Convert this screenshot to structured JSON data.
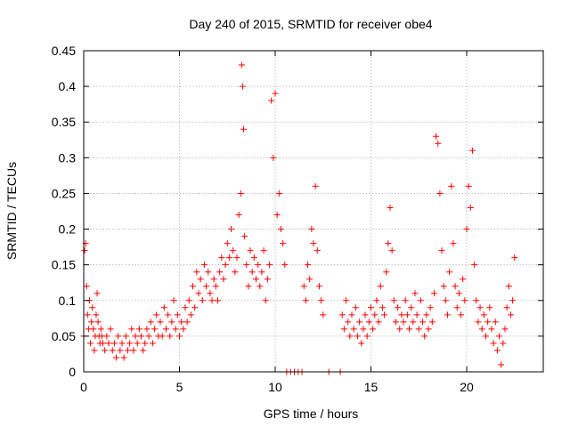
{
  "chart_data": {
    "type": "scatter",
    "title": "Day 240 of 2015, SRMTID for receiver obe4",
    "xlabel": "GPS time / hours",
    "ylabel": "SRMTID / TECUs",
    "xlim": [
      0,
      24
    ],
    "ylim": [
      0,
      0.45
    ],
    "xticks": [
      0,
      5,
      10,
      15,
      20
    ],
    "yticks": [
      0,
      0.05,
      0.1,
      0.15,
      0.2,
      0.25,
      0.3,
      0.35,
      0.4,
      0.45
    ],
    "xtick_labels": [
      "0",
      "5",
      "10",
      "15",
      "20"
    ],
    "ytick_labels": [
      "0",
      "0.05",
      "0.1",
      "0.15",
      "0.2",
      "0.25",
      "0.3",
      "0.35",
      "0.4",
      "0.45"
    ],
    "grid": true,
    "marker": "+",
    "color": "#ff0000",
    "series": [
      {
        "name": "SRMTID",
        "points": [
          [
            0.0,
            0.05
          ],
          [
            0.05,
            0.17
          ],
          [
            0.1,
            0.18
          ],
          [
            0.15,
            0.12
          ],
          [
            0.2,
            0.08
          ],
          [
            0.25,
            0.06
          ],
          [
            0.3,
            0.1
          ],
          [
            0.35,
            0.04
          ],
          [
            0.4,
            0.07
          ],
          [
            0.45,
            0.09
          ],
          [
            0.5,
            0.06
          ],
          [
            0.55,
            0.03
          ],
          [
            0.6,
            0.05
          ],
          [
            0.65,
            0.08
          ],
          [
            0.7,
            0.11
          ],
          [
            0.75,
            0.07
          ],
          [
            0.8,
            0.05
          ],
          [
            0.85,
            0.04
          ],
          [
            0.9,
            0.06
          ],
          [
            0.95,
            0.05
          ],
          [
            1.0,
            0.04
          ],
          [
            1.1,
            0.03
          ],
          [
            1.2,
            0.05
          ],
          [
            1.3,
            0.04
          ],
          [
            1.4,
            0.06
          ],
          [
            1.5,
            0.03
          ],
          [
            1.6,
            0.04
          ],
          [
            1.7,
            0.02
          ],
          [
            1.8,
            0.05
          ],
          [
            1.9,
            0.03
          ],
          [
            2.0,
            0.04
          ],
          [
            2.1,
            0.02
          ],
          [
            2.2,
            0.05
          ],
          [
            2.3,
            0.03
          ],
          [
            2.4,
            0.04
          ],
          [
            2.5,
            0.06
          ],
          [
            2.6,
            0.03
          ],
          [
            2.7,
            0.05
          ],
          [
            2.8,
            0.04
          ],
          [
            2.9,
            0.06
          ],
          [
            3.0,
            0.05
          ],
          [
            3.1,
            0.03
          ],
          [
            3.2,
            0.04
          ],
          [
            3.3,
            0.06
          ],
          [
            3.4,
            0.05
          ],
          [
            3.5,
            0.07
          ],
          [
            3.6,
            0.04
          ],
          [
            3.7,
            0.06
          ],
          [
            3.8,
            0.08
          ],
          [
            3.9,
            0.05
          ],
          [
            4.0,
            0.07
          ],
          [
            4.1,
            0.05
          ],
          [
            4.2,
            0.09
          ],
          [
            4.3,
            0.06
          ],
          [
            4.4,
            0.08
          ],
          [
            4.5,
            0.05
          ],
          [
            4.6,
            0.07
          ],
          [
            4.7,
            0.1
          ],
          [
            4.8,
            0.06
          ],
          [
            4.9,
            0.08
          ],
          [
            5.0,
            0.05
          ],
          [
            5.1,
            0.07
          ],
          [
            5.2,
            0.06
          ],
          [
            5.3,
            0.09
          ],
          [
            5.4,
            0.07
          ],
          [
            5.5,
            0.1
          ],
          [
            5.6,
            0.08
          ],
          [
            5.7,
            0.12
          ],
          [
            5.8,
            0.09
          ],
          [
            5.9,
            0.14
          ],
          [
            6.0,
            0.11
          ],
          [
            6.1,
            0.13
          ],
          [
            6.2,
            0.1
          ],
          [
            6.3,
            0.15
          ],
          [
            6.4,
            0.12
          ],
          [
            6.5,
            0.14
          ],
          [
            6.6,
            0.11
          ],
          [
            6.7,
            0.1
          ],
          [
            6.8,
            0.13
          ],
          [
            6.9,
            0.12
          ],
          [
            7.0,
            0.1
          ],
          [
            7.1,
            0.14
          ],
          [
            7.2,
            0.16
          ],
          [
            7.3,
            0.13
          ],
          [
            7.4,
            0.15
          ],
          [
            7.5,
            0.18
          ],
          [
            7.6,
            0.16
          ],
          [
            7.7,
            0.2
          ],
          [
            7.8,
            0.17
          ],
          [
            7.9,
            0.14
          ],
          [
            8.0,
            0.16
          ],
          [
            8.1,
            0.22
          ],
          [
            8.2,
            0.25
          ],
          [
            8.25,
            0.43
          ],
          [
            8.3,
            0.4
          ],
          [
            8.35,
            0.34
          ],
          [
            8.4,
            0.19
          ],
          [
            8.5,
            0.15
          ],
          [
            8.6,
            0.12
          ],
          [
            8.7,
            0.17
          ],
          [
            8.8,
            0.14
          ],
          [
            8.9,
            0.16
          ],
          [
            9.0,
            0.13
          ],
          [
            9.1,
            0.15
          ],
          [
            9.2,
            0.12
          ],
          [
            9.3,
            0.14
          ],
          [
            9.4,
            0.17
          ],
          [
            9.5,
            0.1
          ],
          [
            9.6,
            0.13
          ],
          [
            9.7,
            0.15
          ],
          [
            9.8,
            0.38
          ],
          [
            9.9,
            0.3
          ],
          [
            10.0,
            0.39
          ],
          [
            10.1,
            0.22
          ],
          [
            10.2,
            0.25
          ],
          [
            10.3,
            0.2
          ],
          [
            10.4,
            0.18
          ],
          [
            10.5,
            0.15
          ],
          [
            10.6,
            0.0
          ],
          [
            10.8,
            0.0
          ],
          [
            11.0,
            0.0
          ],
          [
            11.2,
            0.0
          ],
          [
            11.4,
            0.0
          ],
          [
            11.5,
            0.12
          ],
          [
            11.6,
            0.1
          ],
          [
            11.7,
            0.15
          ],
          [
            11.8,
            0.13
          ],
          [
            11.9,
            0.2
          ],
          [
            12.0,
            0.18
          ],
          [
            12.1,
            0.26
          ],
          [
            12.2,
            0.17
          ],
          [
            12.3,
            0.12
          ],
          [
            12.4,
            0.1
          ],
          [
            12.5,
            0.08
          ],
          [
            12.8,
            0.0
          ],
          [
            13.4,
            0.0
          ],
          [
            13.5,
            0.08
          ],
          [
            13.6,
            0.06
          ],
          [
            13.7,
            0.1
          ],
          [
            13.8,
            0.07
          ],
          [
            13.9,
            0.05
          ],
          [
            14.0,
            0.08
          ],
          [
            14.1,
            0.06
          ],
          [
            14.2,
            0.09
          ],
          [
            14.3,
            0.05
          ],
          [
            14.4,
            0.07
          ],
          [
            14.5,
            0.04
          ],
          [
            14.6,
            0.06
          ],
          [
            14.7,
            0.08
          ],
          [
            14.8,
            0.05
          ],
          [
            14.9,
            0.07
          ],
          [
            15.0,
            0.09
          ],
          [
            15.1,
            0.06
          ],
          [
            15.2,
            0.08
          ],
          [
            15.3,
            0.1
          ],
          [
            15.4,
            0.07
          ],
          [
            15.5,
            0.12
          ],
          [
            15.6,
            0.09
          ],
          [
            15.7,
            0.08
          ],
          [
            15.8,
            0.14
          ],
          [
            15.9,
            0.18
          ],
          [
            16.0,
            0.23
          ],
          [
            16.1,
            0.17
          ],
          [
            16.2,
            0.1
          ],
          [
            16.3,
            0.07
          ],
          [
            16.4,
            0.09
          ],
          [
            16.5,
            0.06
          ],
          [
            16.6,
            0.08
          ],
          [
            16.7,
            0.07
          ],
          [
            16.8,
            0.1
          ],
          [
            16.9,
            0.08
          ],
          [
            17.0,
            0.06
          ],
          [
            17.1,
            0.09
          ],
          [
            17.2,
            0.07
          ],
          [
            17.3,
            0.11
          ],
          [
            17.4,
            0.08
          ],
          [
            17.5,
            0.06
          ],
          [
            17.6,
            0.1
          ],
          [
            17.7,
            0.07
          ],
          [
            17.8,
            0.05
          ],
          [
            17.9,
            0.08
          ],
          [
            18.0,
            0.06
          ],
          [
            18.1,
            0.09
          ],
          [
            18.2,
            0.07
          ],
          [
            18.3,
            0.11
          ],
          [
            18.4,
            0.33
          ],
          [
            18.5,
            0.32
          ],
          [
            18.6,
            0.25
          ],
          [
            18.7,
            0.17
          ],
          [
            18.8,
            0.12
          ],
          [
            18.9,
            0.1
          ],
          [
            19.0,
            0.08
          ],
          [
            19.1,
            0.14
          ],
          [
            19.2,
            0.26
          ],
          [
            19.3,
            0.18
          ],
          [
            19.4,
            0.12
          ],
          [
            19.5,
            0.09
          ],
          [
            19.6,
            0.11
          ],
          [
            19.7,
            0.08
          ],
          [
            19.8,
            0.13
          ],
          [
            19.9,
            0.1
          ],
          [
            20.0,
            0.2
          ],
          [
            20.1,
            0.26
          ],
          [
            20.2,
            0.23
          ],
          [
            20.3,
            0.31
          ],
          [
            20.4,
            0.15
          ],
          [
            20.5,
            0.1
          ],
          [
            20.6,
            0.07
          ],
          [
            20.7,
            0.09
          ],
          [
            20.8,
            0.06
          ],
          [
            20.9,
            0.08
          ],
          [
            21.0,
            0.05
          ],
          [
            21.1,
            0.07
          ],
          [
            21.2,
            0.09
          ],
          [
            21.3,
            0.06
          ],
          [
            21.4,
            0.04
          ],
          [
            21.5,
            0.07
          ],
          [
            21.6,
            0.03
          ],
          [
            21.7,
            0.05
          ],
          [
            21.8,
            0.01
          ],
          [
            21.9,
            0.04
          ],
          [
            22.0,
            0.06
          ],
          [
            22.1,
            0.09
          ],
          [
            22.2,
            0.12
          ],
          [
            22.3,
            0.08
          ],
          [
            22.4,
            0.1
          ],
          [
            22.5,
            0.16
          ]
        ]
      }
    ]
  }
}
